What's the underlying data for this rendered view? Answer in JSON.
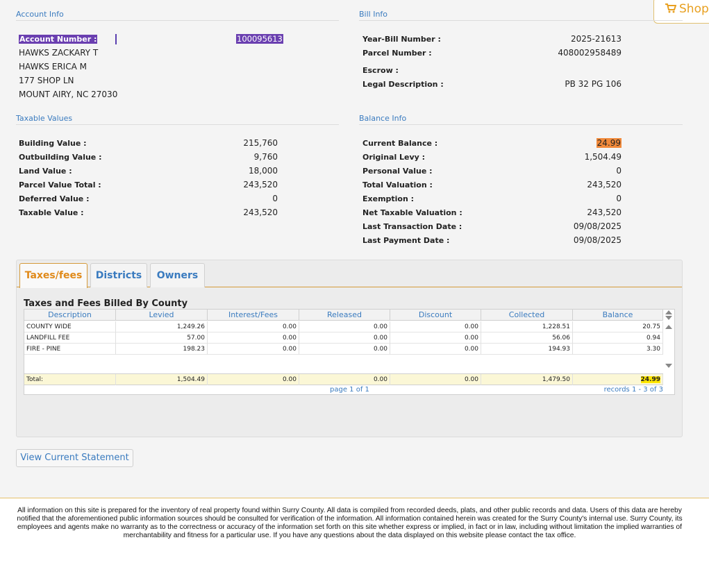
{
  "shop": {
    "label": "Shop"
  },
  "account_info": {
    "title": "Account Info",
    "account_number_label": "Account Number :",
    "account_number": "100095613",
    "owner1": "HAWKS ZACKARY T",
    "owner2": "HAWKS ERICA M",
    "address1": "177 SHOP LN",
    "address2": "MOUNT AIRY, NC 27030"
  },
  "bill_info": {
    "title": "Bill Info",
    "items": [
      {
        "label": "Year-Bill Number :",
        "value": "2025-21613"
      },
      {
        "label": "Parcel Number :",
        "value": "408002958489"
      },
      {
        "label": "Escrow :",
        "value": ""
      },
      {
        "label": "Legal Description :",
        "value": "PB 32 PG 106"
      }
    ]
  },
  "taxable_values": {
    "title": "Taxable Values",
    "items": [
      {
        "label": "Building Value :",
        "value": "215,760"
      },
      {
        "label": "Outbuilding Value :",
        "value": "9,760"
      },
      {
        "label": "Land Value :",
        "value": "18,000"
      },
      {
        "label": "Parcel Value Total :",
        "value": "243,520"
      },
      {
        "label": "Deferred Value :",
        "value": "0"
      },
      {
        "label": "Taxable Value :",
        "value": "243,520"
      }
    ]
  },
  "balance_info": {
    "title": "Balance Info",
    "items": [
      {
        "label": "Current Balance :",
        "value": "24.99"
      },
      {
        "label": "Original Levy :",
        "value": "1,504.49"
      },
      {
        "label": "Personal Value :",
        "value": "0"
      },
      {
        "label": "Total Valuation :",
        "value": "243,520"
      },
      {
        "label": "Exemption :",
        "value": "0"
      },
      {
        "label": "Net Taxable Valuation :",
        "value": "243,520"
      },
      {
        "label": "Last Transaction Date :",
        "value": "09/08/2025"
      },
      {
        "label": "Last Payment Date :",
        "value": "09/08/2025"
      }
    ]
  },
  "tabs": [
    {
      "label": "Taxes/fees"
    },
    {
      "label": "Districts"
    },
    {
      "label": "Owners"
    }
  ],
  "grid": {
    "title": "Taxes and Fees Billed By County",
    "columns": [
      "Description",
      "Levied",
      "Interest/Fees",
      "Released",
      "Discount",
      "Collected",
      "Balance"
    ],
    "rows": [
      [
        "COUNTY WIDE",
        "1,249.26",
        "0.00",
        "0.00",
        "0.00",
        "1,228.51",
        "20.75"
      ],
      [
        "LANDFILL FEE",
        "57.00",
        "0.00",
        "0.00",
        "0.00",
        "56.06",
        "0.94"
      ],
      [
        "FIRE - PINE",
        "198.23",
        "0.00",
        "0.00",
        "0.00",
        "194.93",
        "3.30"
      ]
    ],
    "total": [
      "Total:",
      "1,504.49",
      "0.00",
      "0.00",
      "0.00",
      "1,479.50",
      "24.99"
    ],
    "page_info": "page 1 of 1",
    "records_info": "records 1 - 3 of 3"
  },
  "view_statement": {
    "label": "View Current Statement"
  },
  "footer": {
    "text": "All information on this site is prepared for the inventory of real property found within Surry County. All data is compiled from recorded deeds, plats, and other public records and data. Users of this data are hereby notified that the aforementioned public information sources should be consulted for verification of the information. All information contained herein was created for the Surry County's internal use. Surry County, its employees and agents make no warranty as to the correctness or accuracy of the information set forth on this site whether express or implied, in fact or in law, including without limitation the implied warranties of merchantability and fitness for a particular use. If you have any questions about the data displayed on this website please contact the tax office."
  }
}
